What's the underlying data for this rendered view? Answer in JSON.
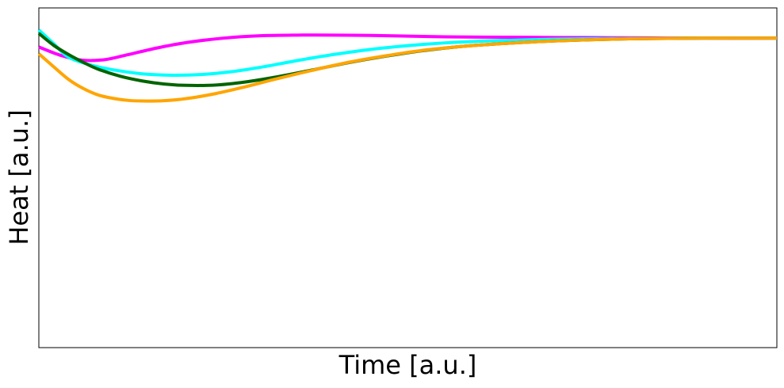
{
  "chart_data": {
    "type": "line",
    "title": "",
    "xlabel": "Time [a.u.]",
    "ylabel": "Heat [a.u.]",
    "xlim": [
      0,
      100
    ],
    "ylim": [
      0,
      100
    ],
    "grid": false,
    "legend": "none",
    "series": [
      {
        "color": "#ff00ff",
        "x": [
          0,
          3,
          6,
          9,
          12,
          16,
          20,
          25,
          30,
          35,
          40,
          45,
          50,
          55,
          60,
          70,
          80,
          90,
          100
        ],
        "y": [
          88.5,
          86,
          84.6,
          84.8,
          86.2,
          88.2,
          89.8,
          91.1,
          91.8,
          92.0,
          92.0,
          91.9,
          91.7,
          91.5,
          91.4,
          91.3,
          91.2,
          91.1,
          91.1
        ]
      },
      {
        "color": "#00ffff",
        "x": [
          0,
          2,
          4,
          7,
          10,
          14,
          18,
          22,
          26,
          30,
          35,
          40,
          45,
          50,
          55,
          60,
          70,
          80,
          90,
          100
        ],
        "y": [
          93.5,
          89.5,
          85.5,
          83.2,
          81.8,
          80.6,
          80.2,
          80.4,
          81.2,
          82.5,
          84.5,
          86.3,
          87.8,
          88.9,
          89.7,
          90.2,
          90.8,
          91.0,
          91.1,
          91.1
        ]
      },
      {
        "color": "#006400",
        "x": [
          0,
          2,
          4,
          6,
          8,
          11,
          14,
          17,
          20,
          24,
          28,
          32,
          37,
          42,
          47,
          52,
          57,
          62,
          70,
          80,
          90,
          100
        ],
        "y": [
          92.5,
          89,
          86.3,
          84,
          82,
          79.9,
          78.5,
          77.6,
          77.2,
          77.3,
          78.2,
          79.6,
          81.7,
          83.9,
          85.8,
          87.4,
          88.6,
          89.4,
          90.3,
          90.9,
          91.1,
          91.1
        ]
      },
      {
        "color": "#ffa500",
        "x": [
          0,
          2,
          4,
          6,
          8,
          10,
          12,
          14,
          17,
          20,
          24,
          28,
          32,
          37,
          42,
          47,
          52,
          57,
          62,
          70,
          80,
          90,
          100
        ],
        "y": [
          86.5,
          82.7,
          79,
          76.3,
          74.4,
          73.4,
          72.8,
          72.6,
          72.7,
          73.3,
          74.8,
          76.8,
          79.0,
          81.6,
          84.0,
          85.9,
          87.5,
          88.6,
          89.4,
          90.3,
          90.9,
          91.1,
          91.1
        ]
      }
    ]
  }
}
